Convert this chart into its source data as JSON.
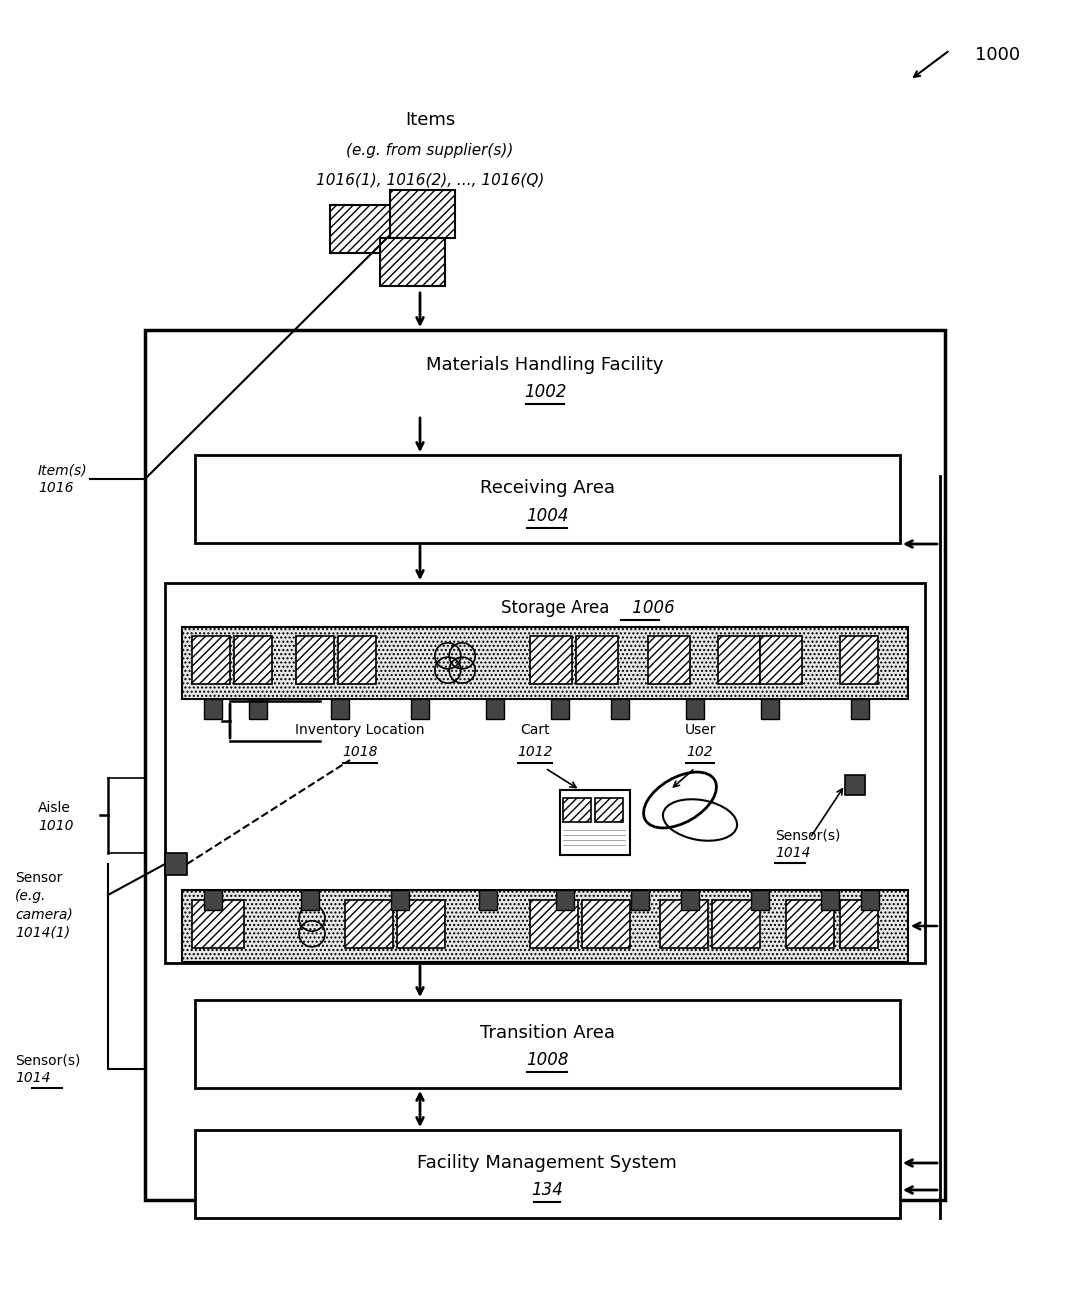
{
  "bg_color": "#ffffff",
  "title_ref": "1000",
  "items_line1": "Items",
  "items_line2": "(e.g. from supplier(s))",
  "items_line3": "1016(1), 1016(2), ..., 1016(Q)",
  "mhf_label": "Materials Handling Facility",
  "mhf_num": "1002",
  "recv_label": "Receiving Area",
  "recv_num": "1004",
  "storage_label": "Storage Area",
  "storage_num": "1006",
  "inv_loc_label": "Inventory Location",
  "inv_loc_num": "1018",
  "cart_label": "Cart",
  "cart_num": "1012",
  "user_label": "User",
  "user_num": "102",
  "aisle_label": "Aisle",
  "aisle_num": "1010",
  "sensor_cam_lines": [
    "Sensor",
    "(e.g.",
    "camera)",
    "1014(1)"
  ],
  "sensors_label": "Sensor(s)",
  "sensors_num": "1014",
  "sensors2_label": "Sensor(s)",
  "sensors2_num": "1014",
  "transition_label": "Transition Area",
  "transition_num": "1008",
  "fms_label": "Facility Management System",
  "fms_num": "134",
  "items_left_label": "Item(s)",
  "items_left_num": "1016"
}
